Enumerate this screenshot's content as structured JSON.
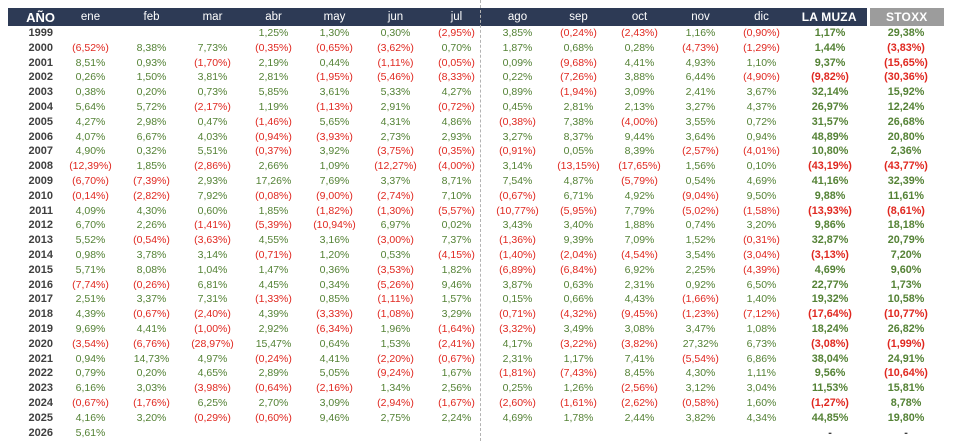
{
  "colors": {
    "header_bg": "#2d3a55",
    "stoxx_header_bg": "#9c9c9c",
    "positive_value": "#548235",
    "negative_value": "#e02820",
    "year_text": "#3f3f3f",
    "header_text": "#ffffff"
  },
  "chart_data": {
    "type": "table",
    "columns": [
      "AÑO",
      "ene",
      "feb",
      "mar",
      "abr",
      "may",
      "jun",
      "jul",
      "ago",
      "sep",
      "oct",
      "nov",
      "dic",
      "LA MUZA",
      "STOXX"
    ],
    "rows": [
      [
        "1999",
        "",
        "",
        "",
        "1,25%",
        "1,30%",
        "0,30%",
        "(2,95%)",
        "3,85%",
        "(0,24%)",
        "(2,43%)",
        "1,16%",
        "(0,90%)",
        "1,17%",
        "29,38%"
      ],
      [
        "2000",
        "(6,52%)",
        "8,38%",
        "7,73%",
        "(0,35%)",
        "(0,65%)",
        "(3,62%)",
        "0,70%",
        "1,87%",
        "0,68%",
        "0,28%",
        "(4,73%)",
        "(1,29%)",
        "1,44%",
        "(3,83%)"
      ],
      [
        "2001",
        "8,51%",
        "0,93%",
        "(1,70%)",
        "2,19%",
        "0,44%",
        "(1,11%)",
        "(0,05%)",
        "0,09%",
        "(9,68%)",
        "4,41%",
        "4,93%",
        "1,10%",
        "9,37%",
        "(15,65%)"
      ],
      [
        "2002",
        "0,26%",
        "1,50%",
        "3,81%",
        "2,81%",
        "(1,95%)",
        "(5,46%)",
        "(8,33%)",
        "0,22%",
        "(7,26%)",
        "3,88%",
        "6,44%",
        "(4,90%)",
        "(9,82%)",
        "(30,36%)"
      ],
      [
        "2003",
        "0,38%",
        "0,20%",
        "0,73%",
        "5,85%",
        "3,61%",
        "5,33%",
        "4,27%",
        "0,89%",
        "(1,94%)",
        "3,09%",
        "2,41%",
        "3,67%",
        "32,14%",
        "15,92%"
      ],
      [
        "2004",
        "5,64%",
        "5,72%",
        "(2,17%)",
        "1,19%",
        "(1,13%)",
        "2,91%",
        "(0,72%)",
        "0,45%",
        "2,81%",
        "2,13%",
        "3,27%",
        "4,37%",
        "26,97%",
        "12,24%"
      ],
      [
        "2005",
        "4,27%",
        "2,98%",
        "0,47%",
        "(1,46%)",
        "5,65%",
        "4,31%",
        "4,86%",
        "(0,38%)",
        "7,38%",
        "(4,00%)",
        "3,55%",
        "0,72%",
        "31,57%",
        "26,68%"
      ],
      [
        "2006",
        "4,07%",
        "6,67%",
        "4,03%",
        "(0,94%)",
        "(3,93%)",
        "2,73%",
        "2,93%",
        "3,27%",
        "8,37%",
        "9,44%",
        "3,64%",
        "0,94%",
        "48,89%",
        "20,80%"
      ],
      [
        "2007",
        "4,90%",
        "0,32%",
        "5,51%",
        "(0,37%)",
        "3,92%",
        "(3,75%)",
        "(0,35%)",
        "(0,91%)",
        "0,05%",
        "8,39%",
        "(2,57%)",
        "(4,01%)",
        "10,80%",
        "2,36%"
      ],
      [
        "2008",
        "(12,39%)",
        "1,85%",
        "(2,86%)",
        "2,66%",
        "1,09%",
        "(12,27%)",
        "(4,00%)",
        "3,14%",
        "(13,15%)",
        "(17,65%)",
        "1,56%",
        "0,10%",
        "(43,19%)",
        "(43,77%)"
      ],
      [
        "2009",
        "(6,70%)",
        "(7,39%)",
        "2,93%",
        "17,26%",
        "7,69%",
        "3,37%",
        "8,71%",
        "7,54%",
        "4,87%",
        "(5,79%)",
        "0,54%",
        "4,69%",
        "41,16%",
        "32,39%"
      ],
      [
        "2010",
        "(0,14%)",
        "(2,82%)",
        "7,92%",
        "(0,08%)",
        "(9,00%)",
        "(2,74%)",
        "7,10%",
        "(0,67%)",
        "6,71%",
        "4,92%",
        "(9,04%)",
        "9,50%",
        "9,88%",
        "11,61%"
      ],
      [
        "2011",
        "4,09%",
        "4,30%",
        "0,60%",
        "1,85%",
        "(1,82%)",
        "(1,30%)",
        "(5,57%)",
        "(10,77%)",
        "(5,95%)",
        "7,79%",
        "(5,02%)",
        "(1,58%)",
        "(13,93%)",
        "(8,61%)"
      ],
      [
        "2012",
        "6,70%",
        "2,26%",
        "(1,41%)",
        "(5,39%)",
        "(10,94%)",
        "6,97%",
        "0,02%",
        "3,43%",
        "3,40%",
        "1,88%",
        "0,74%",
        "3,20%",
        "9,86%",
        "18,18%"
      ],
      [
        "2013",
        "5,52%",
        "(0,54%)",
        "(3,63%)",
        "4,55%",
        "3,16%",
        "(3,00%)",
        "7,37%",
        "(1,36%)",
        "9,39%",
        "7,09%",
        "1,52%",
        "(0,31%)",
        "32,87%",
        "20,79%"
      ],
      [
        "2014",
        "0,98%",
        "3,78%",
        "3,14%",
        "(0,71%)",
        "1,20%",
        "0,53%",
        "(4,15%)",
        "(1,40%)",
        "(2,04%)",
        "(4,54%)",
        "3,54%",
        "(3,04%)",
        "(3,13%)",
        "7,20%"
      ],
      [
        "2015",
        "5,71%",
        "8,08%",
        "1,04%",
        "1,47%",
        "0,36%",
        "(3,53%)",
        "1,82%",
        "(6,89%)",
        "(6,84%)",
        "6,92%",
        "2,25%",
        "(4,39%)",
        "4,69%",
        "9,60%"
      ],
      [
        "2016",
        "(7,74%)",
        "(0,26%)",
        "6,81%",
        "4,45%",
        "0,34%",
        "(5,26%)",
        "9,46%",
        "3,87%",
        "0,63%",
        "2,31%",
        "0,92%",
        "6,50%",
        "22,77%",
        "1,73%"
      ],
      [
        "2017",
        "2,51%",
        "3,37%",
        "7,31%",
        "(1,33%)",
        "0,85%",
        "(1,11%)",
        "1,57%",
        "0,15%",
        "0,66%",
        "4,43%",
        "(1,66%)",
        "1,40%",
        "19,32%",
        "10,58%"
      ],
      [
        "2018",
        "4,39%",
        "(0,67%)",
        "(2,40%)",
        "4,39%",
        "(3,33%)",
        "(1,08%)",
        "3,29%",
        "(0,71%)",
        "(4,32%)",
        "(9,45%)",
        "(1,23%)",
        "(7,12%)",
        "(17,64%)",
        "(10,77%)"
      ],
      [
        "2019",
        "9,69%",
        "4,41%",
        "(1,00%)",
        "2,92%",
        "(6,34%)",
        "1,96%",
        "(1,64%)",
        "(3,32%)",
        "3,49%",
        "3,08%",
        "3,47%",
        "1,08%",
        "18,24%",
        "26,82%"
      ],
      [
        "2020",
        "(3,54%)",
        "(6,76%)",
        "(28,97%)",
        "15,47%",
        "0,64%",
        "1,53%",
        "(2,41%)",
        "4,17%",
        "(3,22%)",
        "(3,82%)",
        "27,32%",
        "6,73%",
        "(3,08%)",
        "(1,99%)"
      ],
      [
        "2021",
        "0,94%",
        "14,73%",
        "4,97%",
        "(0,24%)",
        "4,41%",
        "(2,20%)",
        "(0,67%)",
        "2,31%",
        "1,17%",
        "7,41%",
        "(5,54%)",
        "6,86%",
        "38,04%",
        "24,91%"
      ],
      [
        "2022",
        "0,79%",
        "0,20%",
        "4,65%",
        "2,89%",
        "5,05%",
        "(9,24%)",
        "1,67%",
        "(1,81%)",
        "(7,43%)",
        "8,45%",
        "4,30%",
        "1,11%",
        "9,56%",
        "(10,64%)"
      ],
      [
        "2023",
        "6,16%",
        "3,03%",
        "(3,98%)",
        "(0,64%)",
        "(2,16%)",
        "1,34%",
        "2,56%",
        "0,25%",
        "1,26%",
        "(2,56%)",
        "3,12%",
        "3,04%",
        "11,53%",
        "15,81%"
      ],
      [
        "2024",
        "(0,67%)",
        "(1,76%)",
        "6,25%",
        "2,70%",
        "3,09%",
        "(2,94%)",
        "(1,67%)",
        "(2,60%)",
        "(1,61%)",
        "(2,62%)",
        "(0,58%)",
        "1,60%",
        "(1,27%)",
        "8,78%"
      ],
      [
        "2025",
        "4,16%",
        "3,20%",
        "(0,29%)",
        "(0,60%)",
        "9,46%",
        "2,75%",
        "2,24%",
        "4,69%",
        "1,78%",
        "2,44%",
        "3,82%",
        "4,34%",
        "44,85%",
        "19,80%"
      ],
      [
        "2026",
        "5,61%",
        "",
        "",
        "",
        "",
        "",
        "",
        "",
        "",
        "",
        "",
        "",
        "-",
        "-"
      ]
    ]
  }
}
